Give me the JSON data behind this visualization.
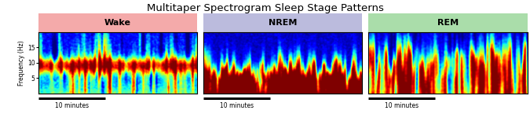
{
  "title": "Multitaper Spectrogram Sleep Stage Patterns",
  "title_fontsize": 9.5,
  "panels": [
    {
      "label": "Wake",
      "label_bg": "#F4AAAA",
      "pattern": "wake"
    },
    {
      "label": "NREM",
      "label_bg": "#BBBBDD",
      "pattern": "nrem"
    },
    {
      "label": "REM",
      "label_bg": "#AADDAA",
      "pattern": "rem"
    }
  ],
  "ylabel": "Frequency (Hz)",
  "xlabel": "10 minutes",
  "freq_max": 20,
  "yticks": [
    5,
    10,
    15
  ],
  "figure_bg": "#ffffff"
}
